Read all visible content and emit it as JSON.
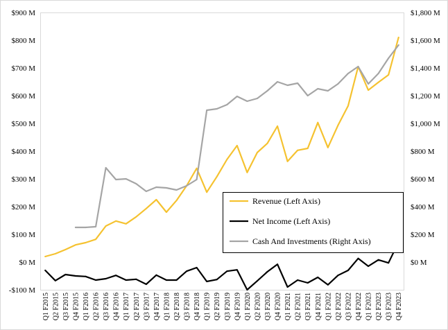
{
  "chart_data": {
    "type": "line",
    "categories": [
      "Q1 F2015",
      "Q2 F2015",
      "Q3 F2015",
      "Q4 F2015",
      "Q1 F2016",
      "Q2 F2016",
      "Q3 F2016",
      "Q4 F2016",
      "Q1 F2017",
      "Q2 F2017",
      "Q3 F2017",
      "Q4 F2017",
      "Q1 F2018",
      "Q2 F2018",
      "Q3 F2018",
      "Q4 F2018",
      "Q1 F2019",
      "Q2 F2019",
      "Q3 F2019",
      "Q4 F2019",
      "Q1 F2020",
      "Q2 F2020",
      "Q3 F2020",
      "Q4 F2020",
      "Q1 F2021",
      "Q2 F2021",
      "Q3 F2021",
      "Q4 F2021",
      "Q1 F2022",
      "Q2 F2022",
      "Q3 F2022",
      "Q4 F2022",
      "Q1 F2023",
      "Q2 F2023",
      "Q3 F2023",
      "Q4 F2023"
    ],
    "series": [
      {
        "name": "Revenue (Left Axis)",
        "axis": "left",
        "color": "#F5C230",
        "values": [
          20,
          30,
          45,
          62,
          70,
          82,
          130,
          148,
          138,
          163,
          193,
          225,
          180,
          222,
          275,
          338,
          252,
          308,
          370,
          420,
          323,
          395,
          428,
          490,
          363,
          403,
          410,
          503,
          413,
          493,
          563,
          705,
          620,
          648,
          675,
          810
        ]
      },
      {
        "name": "Net Income (Left Axis)",
        "axis": "left",
        "color": "#000000",
        "values": [
          -30,
          -67,
          -45,
          -50,
          -52,
          -65,
          -60,
          -48,
          -65,
          -62,
          -80,
          -47,
          -65,
          -65,
          -33,
          -20,
          -70,
          -63,
          -33,
          -28,
          -100,
          -68,
          -35,
          -8,
          -90,
          -65,
          -75,
          -55,
          -82,
          -48,
          -30,
          13,
          -15,
          8,
          -3,
          72
        ]
      },
      {
        "name": "Cash And Investments (Right Axis)",
        "axis": "right",
        "color": "#A5A5A5",
        "values": [
          null,
          null,
          null,
          250,
          250,
          255,
          680,
          595,
          600,
          565,
          510,
          540,
          535,
          520,
          550,
          595,
          1095,
          1105,
          1135,
          1195,
          1160,
          1180,
          1235,
          1300,
          1275,
          1290,
          1200,
          1250,
          1235,
          1285,
          1360,
          1410,
          1285,
          1360,
          1470,
          1565
        ]
      }
    ],
    "y_left": {
      "min": -100,
      "max": 900,
      "tick_values": [
        900,
        800,
        700,
        600,
        500,
        400,
        300,
        200,
        100,
        0,
        -100
      ],
      "tick_labels": [
        "$900 M",
        "$800 M",
        "$700 M",
        "$600 M",
        "$500 M",
        "$400 M",
        "$300 M",
        "$200 M",
        "$100 M",
        "$0 M",
        "-$100 M"
      ]
    },
    "y_right": {
      "min": -200,
      "max": 1800,
      "tick_values": [
        1800,
        1600,
        1400,
        1200,
        1000,
        800,
        600,
        400,
        200,
        0
      ],
      "tick_labels": [
        "$1,800 M",
        "$1,600 M",
        "$1,400 M",
        "$1,200 M",
        "$1,000 M",
        "$800 M",
        "$600 M",
        "$400 M",
        "$200 M",
        "$0 M"
      ]
    },
    "grid": false,
    "legend": {
      "placement": "lower-right, inside plot",
      "border_color": "#000000"
    },
    "frame_color": "#D9D9D9"
  }
}
